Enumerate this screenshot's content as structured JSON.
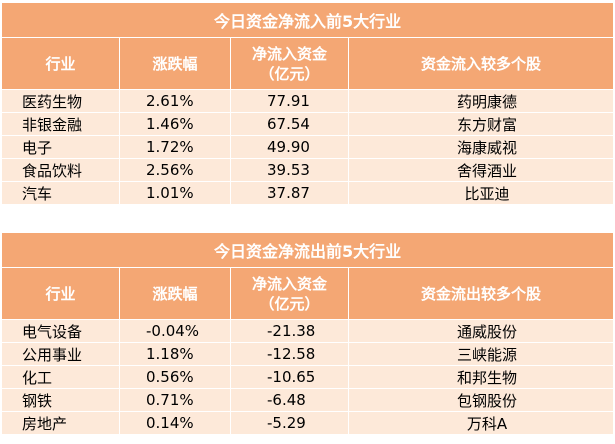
{
  "inflow": {
    "title": "今日资金净流入前5大行业",
    "headers": [
      "行业",
      "涨跌幅",
      "净流入资金\n（亿元）",
      "资金流入较多个股"
    ],
    "rows": [
      {
        "industry": "医药生物",
        "change": "2.61%",
        "amount": "77.91",
        "stock": "药明康德"
      },
      {
        "industry": "非银金融",
        "change": "1.46%",
        "amount": "67.54",
        "stock": "东方财富"
      },
      {
        "industry": "电子",
        "change": "1.72%",
        "amount": "49.90",
        "stock": "海康威视"
      },
      {
        "industry": "食品饮料",
        "change": "2.56%",
        "amount": "39.53",
        "stock": "舍得酒业"
      },
      {
        "industry": "汽车",
        "change": "1.01%",
        "amount": "37.87",
        "stock": "比亚迪"
      }
    ]
  },
  "outflow": {
    "title": "今日资金净流出前5大行业",
    "headers": [
      "行业",
      "涨跌幅",
      "净流入资金\n（亿元）",
      "资金流出较多个股"
    ],
    "rows": [
      {
        "industry": "电气设备",
        "change": "-0.04%",
        "amount": "-21.38",
        "stock": "通威股份"
      },
      {
        "industry": "公用事业",
        "change": "1.18%",
        "amount": "-12.58",
        "stock": "三峡能源"
      },
      {
        "industry": "化工",
        "change": "0.56%",
        "amount": "-10.65",
        "stock": "和邦生物"
      },
      {
        "industry": "钢铁",
        "change": "0.71%",
        "amount": "-6.48",
        "stock": "包钢股份"
      },
      {
        "industry": "房地产",
        "change": "0.14%",
        "amount": "-5.29",
        "stock": "万科A"
      }
    ]
  },
  "colors": {
    "header_bg": "#f4a774",
    "row_bg": "#fde9d9",
    "header_text": "#ffffff"
  }
}
